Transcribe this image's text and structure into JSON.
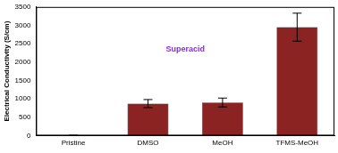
{
  "chart_data": {
    "type": "bar",
    "y_label": "Electrical Conductivity (S/cm)",
    "categories": [
      "Pristine",
      "DMSO",
      "MeOH",
      "TFMS-MeOH"
    ],
    "values": [
      5,
      870,
      900,
      2950
    ],
    "errors": [
      0,
      110,
      120,
      380
    ],
    "color": "#8b2323",
    "ylim": [
      0,
      3500
    ],
    "yticks": [
      0,
      500,
      1000,
      1500,
      2000,
      2500,
      3000,
      3500
    ],
    "grid": false,
    "annotations": [
      {
        "text": "Superacid",
        "color": "#8a2be2"
      }
    ]
  }
}
